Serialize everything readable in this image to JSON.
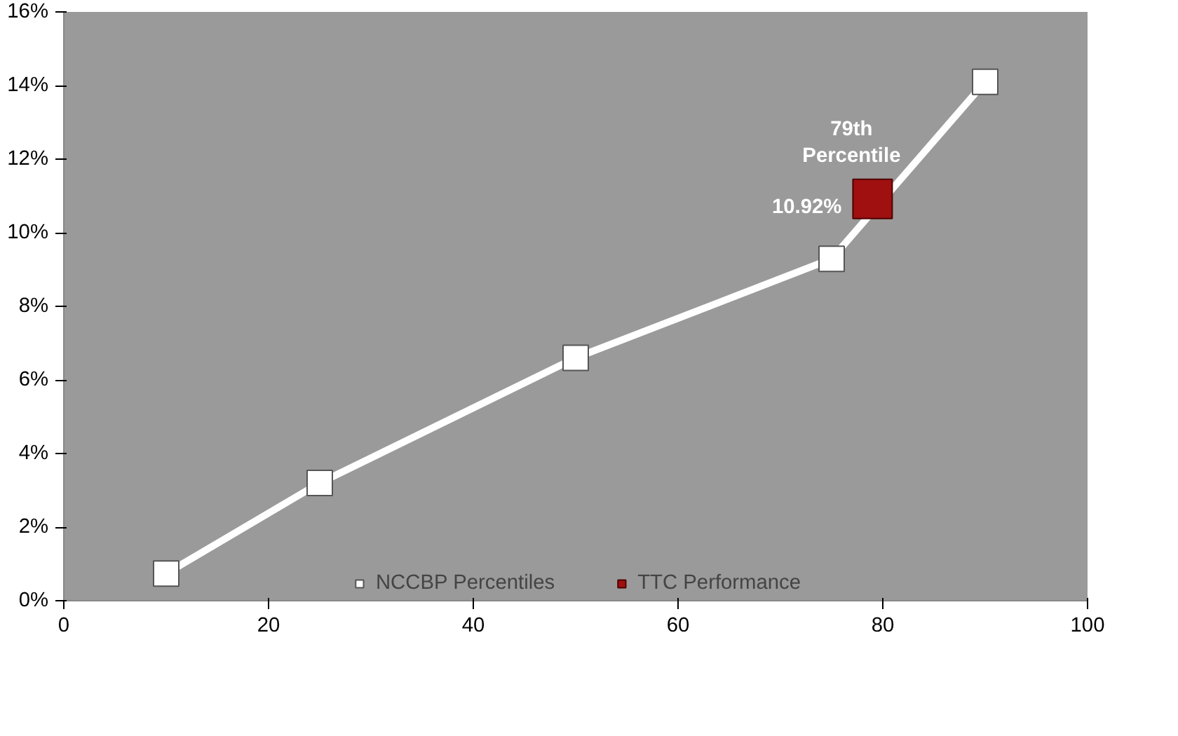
{
  "chart_data": {
    "type": "line",
    "marker": "square",
    "legend": "bottom",
    "grid": false,
    "xlim": [
      0,
      100
    ],
    "xticks": [
      0,
      20,
      40,
      60,
      80,
      100
    ],
    "ylim": [
      0,
      16
    ],
    "yticks": [
      {
        "value": 0,
        "label": "0%"
      },
      {
        "value": 2,
        "label": "2%"
      },
      {
        "value": 4,
        "label": "4%"
      },
      {
        "value": 6,
        "label": "6%"
      },
      {
        "value": 8,
        "label": "8%"
      },
      {
        "value": 10,
        "label": "10%"
      },
      {
        "value": 12,
        "label": "12%"
      },
      {
        "value": 14,
        "label": "14%"
      },
      {
        "value": 16,
        "label": "16%"
      }
    ],
    "series": [
      {
        "name": "NCCBP Percentiles",
        "color": "#ffffff",
        "x": [
          10,
          25,
          50,
          75,
          90
        ],
        "values": [
          0.74,
          3.2,
          6.6,
          9.29,
          14.1
        ]
      },
      {
        "name": "TTC Performance",
        "type": "scatter",
        "color": "#a01010",
        "x": [
          79
        ],
        "values": [
          10.92
        ],
        "value_labels": [
          "10.92%"
        ]
      }
    ],
    "annotations": [
      {
        "text": "79th Percentile",
        "x": 79,
        "y": 10.92
      }
    ]
  }
}
